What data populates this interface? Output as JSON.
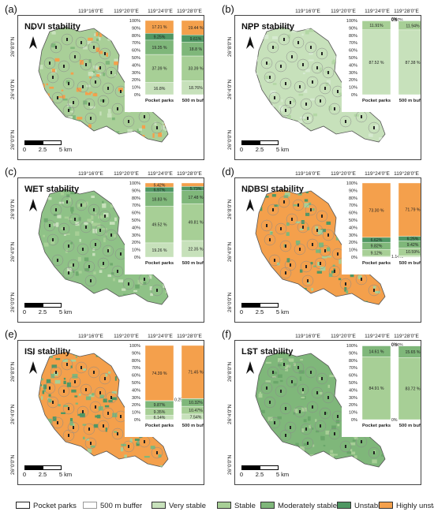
{
  "longitude_labels": [
    "119°16'0\"E",
    "119°20'0\"E",
    "119°24'0\"E",
    "119°28'0\"E"
  ],
  "latitude_labels": [
    "26°8'0\"N",
    "26°4'0\"N",
    "26°0'0\"N"
  ],
  "north_label": "N",
  "scale_labels": [
    "0",
    "2.5",
    "5 km"
  ],
  "categories": [
    "Pocket parks",
    "500 m buffer"
  ],
  "y_ticks": [
    "0%",
    "10%",
    "20%",
    "30%",
    "40%",
    "50%",
    "60%",
    "70%",
    "80%",
    "90%",
    "100%"
  ],
  "colors": {
    "very_stable": "#c7e1bb",
    "stable": "#a7cf96",
    "moderately_stable": "#7fb77a",
    "unstable": "#4f9763",
    "highly_unstable": "#f4a04c"
  },
  "legend": [
    {
      "label": "Pocket parks",
      "swatch": "outline-dark"
    },
    {
      "label": "500 m buffer",
      "swatch": "outline-light"
    },
    {
      "label": "Very stable",
      "swatch": "very_stable"
    },
    {
      "label": "Stable",
      "swatch": "stable"
    },
    {
      "label": "Moderately stable",
      "swatch": "moderately_stable"
    },
    {
      "label": "Unstable",
      "swatch": "unstable"
    },
    {
      "label": "Highly unstable",
      "swatch": "highly_unstable"
    }
  ],
  "panels": [
    {
      "letter": "(a)",
      "title": "NDVI stability",
      "map_tone": "mixed",
      "chart_data": {
        "type": "bar",
        "categories": [
          "Pocket parks",
          "500 m buffer"
        ],
        "ylim": [
          0,
          100
        ],
        "series_order": [
          "very_stable",
          "stable",
          "moderately_stable",
          "unstable",
          "highly_unstable"
        ],
        "bars": [
          {
            "values": [
              16.8,
              37.39,
              19.35,
              9.25,
              17.21
            ],
            "labels": [
              "16.8%",
              "37.39 %",
              "19.35 %",
              "9.25%",
              "17.21 %"
            ]
          },
          {
            "values": [
              18.76,
              33.39,
              18.8,
              9.61,
              19.44
            ],
            "labels": [
              "18.76%",
              "33.39 %",
              "18.8 %",
              "9.61%",
              "19.44 %"
            ]
          }
        ]
      }
    },
    {
      "letter": "(b)",
      "title": "NPP stability",
      "map_tone": "light",
      "chart_data": {
        "type": "bar",
        "categories": [
          "Pocket parks",
          "500 m buffer"
        ],
        "ylim": [
          0,
          100
        ],
        "series_order": [
          "very_stable",
          "stable",
          "moderately_stable",
          "unstable",
          "highly_unstable"
        ],
        "bars": [
          {
            "values": [
              87.52,
              11.91,
              0.57,
              0,
              0
            ],
            "labels": [
              "87.52 %",
              "11.91%",
              "0.57%",
              "0%",
              "0%"
            ]
          },
          {
            "values": [
              87.38,
              11.94,
              0.68,
              0,
              0
            ],
            "labels": [
              "87.38 %",
              "11.94%",
              "0.68%",
              "0%",
              "0%"
            ]
          }
        ]
      }
    },
    {
      "letter": "(c)",
      "title": "WET stability",
      "map_tone": "green",
      "chart_data": {
        "type": "bar",
        "categories": [
          "Pocket parks",
          "500 m buffer"
        ],
        "ylim": [
          0,
          100
        ],
        "series_order": [
          "very_stable",
          "stable",
          "moderately_stable",
          "unstable",
          "highly_unstable"
        ],
        "bars": [
          {
            "values": [
              19.26,
              49.52,
              18.83,
              6.97,
              5.42
            ],
            "labels": [
              "19.26 %",
              "49.52 %",
              "18.83 %",
              "6.97%",
              "5.42%"
            ]
          },
          {
            "values": [
              22.35,
              49.81,
              17.48,
              5.73,
              4.63
            ],
            "labels": [
              "22.35 %",
              "49.81 %",
              "17.48 %",
              "5.73%",
              "4.63%"
            ]
          }
        ]
      }
    },
    {
      "letter": "(d)",
      "title": "NDBSI stability",
      "map_tone": "orange",
      "chart_data": {
        "type": "bar",
        "categories": [
          "Pocket parks",
          "500 m buffer"
        ],
        "ylim": [
          0,
          100
        ],
        "series_order": [
          "very_stable",
          "stable",
          "moderately_stable",
          "unstable",
          "highly_unstable"
        ],
        "bars": [
          {
            "values": [
              1.14,
              9.12,
              9.82,
              6.62,
              73.3
            ],
            "labels": [
              "1.14%",
              "9.12%",
              "9.82%",
              "6.62%",
              "73.30 %"
            ]
          },
          {
            "values": [
              1.95,
              10.59,
              9.42,
              6.25,
              71.79
            ],
            "labels": [
              "1.95%",
              "10.59%",
              "9.42%",
              "6.25%",
              "71.79 %"
            ]
          }
        ]
      }
    },
    {
      "letter": "(e)",
      "title": "ISI stability",
      "map_tone": "orange",
      "chart_data": {
        "type": "bar",
        "categories": [
          "Pocket parks",
          "500 m buffer"
        ],
        "ylim": [
          0,
          100
        ],
        "series_order": [
          "very_stable",
          "stable",
          "moderately_stable",
          "unstable",
          "highly_unstable"
        ],
        "bars": [
          {
            "values": [
              6.14,
              9.35,
              9.87,
              0.25,
              74.39
            ],
            "labels": [
              "6.14%",
              "9.35%",
              "9.87%",
              "0.25%",
              "74.39 %"
            ]
          },
          {
            "values": [
              7.54,
              10.47,
              10.32,
              0.22,
              71.45
            ],
            "labels": [
              "7.54%",
              "10.47%",
              "10.32%",
              "0.22%",
              "71.45 %"
            ]
          }
        ]
      }
    },
    {
      "letter": "(f)",
      "title": "LST stability",
      "map_tone": "deepgreen",
      "chart_data": {
        "type": "bar",
        "categories": [
          "Pocket parks",
          "500 m buffer"
        ],
        "ylim": [
          0,
          100
        ],
        "series_order": [
          "very_stable",
          "stable",
          "moderately_stable",
          "unstable",
          "highly_unstable"
        ],
        "bars": [
          {
            "values": [
              0,
              84.91,
              14.61,
              0.06,
              0
            ],
            "labels": [
              "0%",
              "84.91 %",
              "14.61 %",
              "0.06%",
              "0%"
            ]
          },
          {
            "values": [
              0,
              83.72,
              15.65,
              0.12,
              0
            ],
            "labels": [
              "0%",
              "83.72 %",
              "15.65 %",
              "0.12%",
              "0%"
            ]
          }
        ]
      }
    }
  ]
}
